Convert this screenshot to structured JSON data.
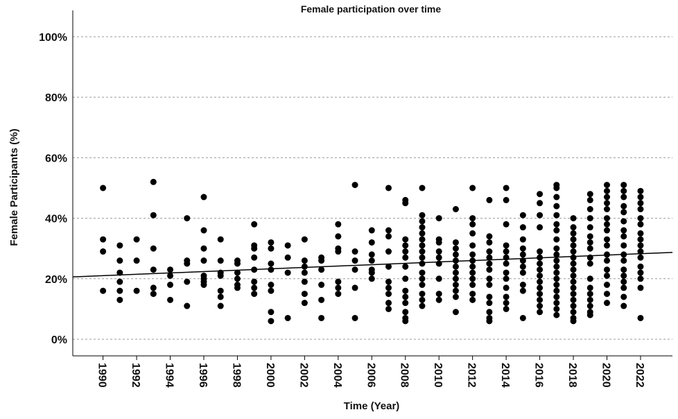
{
  "chart_data": {
    "type": "scatter",
    "title": "Female participation over time",
    "x_label": "Time (Year)",
    "y_label": "Female Participants (%)",
    "xlim": [
      1988.2,
      2023.9
    ],
    "ylim": [
      -5.5,
      108.7
    ],
    "xticks": [
      1990,
      1992,
      1994,
      1996,
      1998,
      2000,
      2002,
      2004,
      2006,
      2008,
      2010,
      2012,
      2014,
      2016,
      2018,
      2020,
      2022
    ],
    "yticks": [
      {
        "value": 0,
        "label": "0%"
      },
      {
        "value": 20,
        "label": "20%"
      },
      {
        "value": 40,
        "label": "40%"
      },
      {
        "value": 60,
        "label": "60%"
      },
      {
        "value": 80,
        "label": "80%"
      },
      {
        "value": 100,
        "label": "100%"
      }
    ],
    "grid": true,
    "series": [
      {
        "color": "#000000",
        "x": [
          1990,
          1990,
          1990,
          1990,
          1991,
          1991,
          1991,
          1991,
          1991,
          1991,
          1992,
          1992,
          1992,
          1993,
          1993,
          1993,
          1993,
          1993,
          1993,
          1994,
          1994,
          1994,
          1994,
          1995,
          1995,
          1995,
          1995,
          1995,
          1996,
          1996,
          1996,
          1996,
          1996,
          1996,
          1996,
          1996,
          1997,
          1997,
          1997,
          1997,
          1997,
          1997,
          1997,
          1998,
          1998,
          1998,
          1998,
          1998,
          1998,
          1999,
          1999,
          1999,
          1999,
          1999,
          1999,
          1999,
          1999,
          2000,
          2000,
          2000,
          2000,
          2000,
          2000,
          2000,
          2000,
          2001,
          2001,
          2001,
          2001,
          2002,
          2002,
          2002,
          2002,
          2002,
          2002,
          2002,
          2003,
          2003,
          2003,
          2003,
          2003,
          2003,
          2004,
          2004,
          2004,
          2004,
          2004,
          2004,
          2004,
          2005,
          2005,
          2005,
          2005,
          2005,
          2005,
          2006,
          2006,
          2006,
          2006,
          2006,
          2006,
          2006,
          2007,
          2007,
          2007,
          2007,
          2007,
          2007,
          2007,
          2007,
          2007,
          2007,
          2008,
          2008,
          2008,
          2008,
          2008,
          2008,
          2008,
          2008,
          2008,
          2008,
          2008,
          2008,
          2008,
          2008,
          2009,
          2009,
          2009,
          2009,
          2009,
          2009,
          2009,
          2009,
          2009,
          2009,
          2009,
          2009,
          2009,
          2009,
          2009,
          2009,
          2010,
          2010,
          2010,
          2010,
          2010,
          2010,
          2010,
          2010,
          2010,
          2011,
          2011,
          2011,
          2011,
          2011,
          2011,
          2011,
          2011,
          2011,
          2011,
          2011,
          2011,
          2012,
          2012,
          2012,
          2012,
          2012,
          2012,
          2012,
          2012,
          2012,
          2012,
          2012,
          2012,
          2012,
          2013,
          2013,
          2013,
          2013,
          2013,
          2013,
          2013,
          2013,
          2013,
          2013,
          2013,
          2013,
          2013,
          2013,
          2014,
          2014,
          2014,
          2014,
          2014,
          2014,
          2014,
          2014,
          2014,
          2014,
          2014,
          2014,
          2014,
          2015,
          2015,
          2015,
          2015,
          2015,
          2015,
          2015,
          2015,
          2015,
          2015,
          2015,
          2016,
          2016,
          2016,
          2016,
          2016,
          2016,
          2016,
          2016,
          2016,
          2016,
          2016,
          2016,
          2016,
          2016,
          2016,
          2017,
          2017,
          2017,
          2017,
          2017,
          2017,
          2017,
          2017,
          2017,
          2017,
          2017,
          2017,
          2017,
          2017,
          2017,
          2017,
          2017,
          2017,
          2017,
          2017,
          2018,
          2018,
          2018,
          2018,
          2018,
          2018,
          2018,
          2018,
          2018,
          2018,
          2018,
          2018,
          2018,
          2018,
          2018,
          2018,
          2018,
          2018,
          2019,
          2019,
          2019,
          2019,
          2019,
          2019,
          2019,
          2019,
          2019,
          2019,
          2019,
          2019,
          2019,
          2019,
          2019,
          2019,
          2019,
          2020,
          2020,
          2020,
          2020,
          2020,
          2020,
          2020,
          2020,
          2020,
          2020,
          2020,
          2020,
          2020,
          2020,
          2020,
          2020,
          2020,
          2021,
          2021,
          2021,
          2021,
          2021,
          2021,
          2021,
          2021,
          2021,
          2021,
          2021,
          2021,
          2021,
          2021,
          2021,
          2021,
          2021,
          2022,
          2022,
          2022,
          2022,
          2022,
          2022,
          2022,
          2022,
          2022,
          2022,
          2022,
          2022,
          2022,
          2022,
          2022,
          2022
        ],
        "values": [
          50,
          33,
          29,
          16,
          31,
          26,
          22,
          19,
          16,
          13,
          33,
          26,
          16,
          52,
          41,
          30,
          23,
          17,
          15,
          23,
          21,
          18,
          13,
          40,
          26,
          25,
          19,
          11,
          47,
          36,
          30,
          26,
          21,
          20,
          19,
          18,
          33,
          26,
          22,
          21,
          16,
          14,
          11,
          26,
          25,
          22,
          20,
          18,
          17,
          38,
          31,
          30,
          27,
          23,
          19,
          17,
          15,
          32,
          30,
          25,
          23,
          18,
          16,
          9,
          6,
          31,
          27,
          22,
          7,
          33,
          26,
          24,
          22,
          19,
          15,
          12,
          27,
          26,
          23,
          18,
          13,
          7,
          38,
          34,
          30,
          29,
          19,
          17,
          15,
          51,
          29,
          26,
          23,
          17,
          7,
          36,
          32,
          28,
          26,
          23,
          22,
          20,
          50,
          36,
          34,
          29,
          24,
          19,
          17,
          15,
          12,
          10,
          46,
          45,
          33,
          31,
          29,
          27,
          24,
          20,
          16,
          14,
          12,
          9,
          7,
          6,
          50,
          41,
          39,
          37,
          35,
          33,
          31,
          29,
          27,
          25,
          22,
          20,
          18,
          15,
          13,
          11,
          40,
          33,
          32,
          29,
          27,
          25,
          20,
          15,
          13,
          43,
          32,
          30,
          28,
          26,
          24,
          22,
          20,
          18,
          16,
          14,
          9,
          50,
          40,
          38,
          35,
          31,
          28,
          26,
          24,
          22,
          20,
          18,
          15,
          13,
          46,
          34,
          32,
          29,
          27,
          25,
          23,
          20,
          18,
          14,
          12,
          9,
          7,
          6,
          50,
          46,
          38,
          31,
          29,
          27,
          25,
          22,
          20,
          17,
          14,
          12,
          10,
          41,
          37,
          33,
          30,
          28,
          26,
          24,
          22,
          18,
          16,
          7,
          48,
          45,
          41,
          37,
          29,
          27,
          25,
          23,
          21,
          19,
          17,
          15,
          13,
          11,
          9,
          51,
          50,
          47,
          44,
          41,
          38,
          36,
          33,
          30,
          28,
          26,
          24,
          22,
          20,
          18,
          16,
          14,
          12,
          10,
          8,
          40,
          37,
          35,
          33,
          31,
          29,
          27,
          25,
          23,
          21,
          19,
          17,
          15,
          13,
          11,
          9,
          7,
          6,
          48,
          46,
          43,
          40,
          37,
          34,
          32,
          30,
          27,
          25,
          20,
          17,
          15,
          13,
          11,
          9,
          8,
          51,
          49,
          47,
          45,
          43,
          40,
          38,
          36,
          33,
          31,
          28,
          26,
          23,
          21,
          18,
          15,
          12,
          51,
          49,
          47,
          44,
          42,
          39,
          36,
          34,
          31,
          28,
          26,
          23,
          21,
          19,
          17,
          14,
          11,
          49,
          47,
          45,
          43,
          40,
          38,
          35,
          33,
          31,
          29,
          27,
          24,
          22,
          20,
          17,
          7
        ]
      }
    ],
    "fit_line": {
      "color": "#000000",
      "x": [
        1988.2,
        2023.9
      ],
      "values": [
        20.6,
        28.7
      ]
    }
  }
}
